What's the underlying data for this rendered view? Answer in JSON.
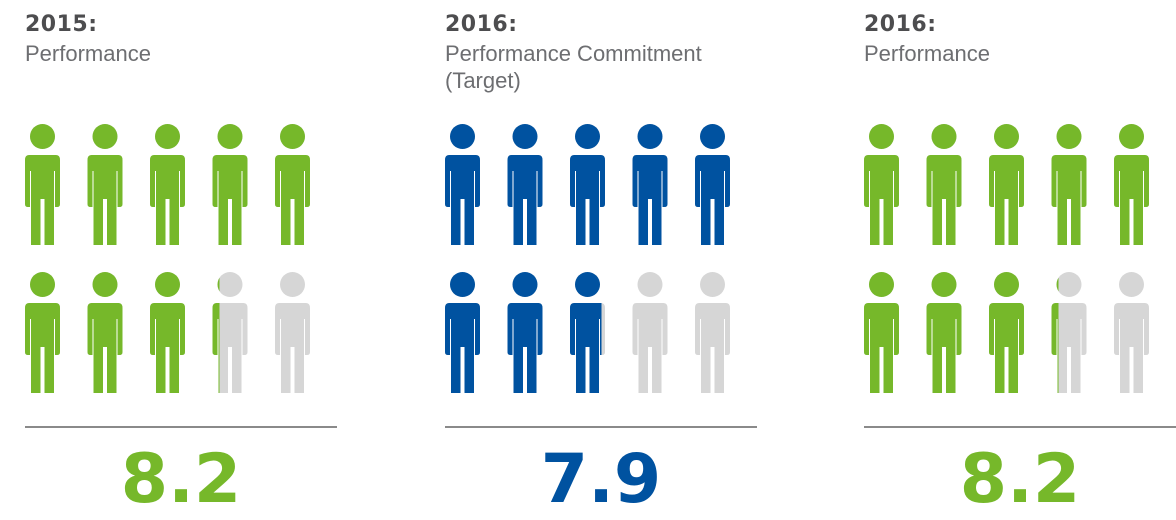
{
  "colors": {
    "green": "#76b82a",
    "blue": "#0052a0",
    "grey": "#d6d6d6"
  },
  "icon_name": "person-icon",
  "icons_per_panel": 10,
  "chart_data": [
    {
      "type": "pictograph",
      "year_label": "2015:",
      "subtitle": "Performance",
      "value": 8.2,
      "value_label": "8.2",
      "max": 10,
      "color": "green"
    },
    {
      "type": "pictograph",
      "year_label": "2016:",
      "subtitle": "Performance Commitment (Target)",
      "value": 7.9,
      "value_label": "7.9",
      "max": 10,
      "color": "blue"
    },
    {
      "type": "pictograph",
      "year_label": "2016:",
      "subtitle": "Performance",
      "value": 8.2,
      "value_label": "8.2",
      "max": 10,
      "color": "green"
    }
  ]
}
